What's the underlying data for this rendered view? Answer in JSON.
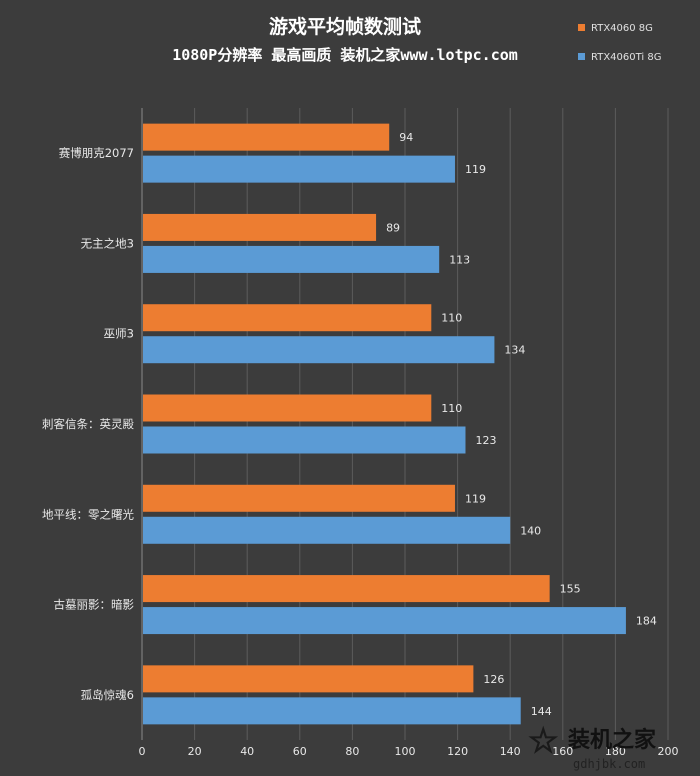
{
  "chart_data": {
    "type": "bar",
    "orientation": "horizontal",
    "title": "游戏平均帧数测试",
    "subtitle": "1080P分辨率 最高画质 装机之家www.lotpc.com",
    "categories": [
      "赛博朋克2077",
      "无主之地3",
      "巫师3",
      "刺客信条：英灵殿",
      "地平线：零之曙光",
      "古墓丽影：暗影",
      "孤岛惊魂6"
    ],
    "series": [
      {
        "name": "RTX4060 8G",
        "color": "#ed7d31",
        "values": [
          94,
          89,
          110,
          110,
          119,
          155,
          126
        ]
      },
      {
        "name": "RTX4060Ti 8G",
        "color": "#5b9bd5",
        "values": [
          119,
          113,
          134,
          123,
          140,
          184,
          144
        ]
      }
    ],
    "xticks": [
      "0",
      "20",
      "40",
      "60",
      "80",
      "100",
      "120",
      "140",
      "160",
      "180",
      "200"
    ],
    "xlim": [
      0,
      200
    ],
    "grid": true,
    "legend_position": "top-right"
  },
  "watermark": {
    "text": "装机之家",
    "url": "gdhjbk.com"
  }
}
